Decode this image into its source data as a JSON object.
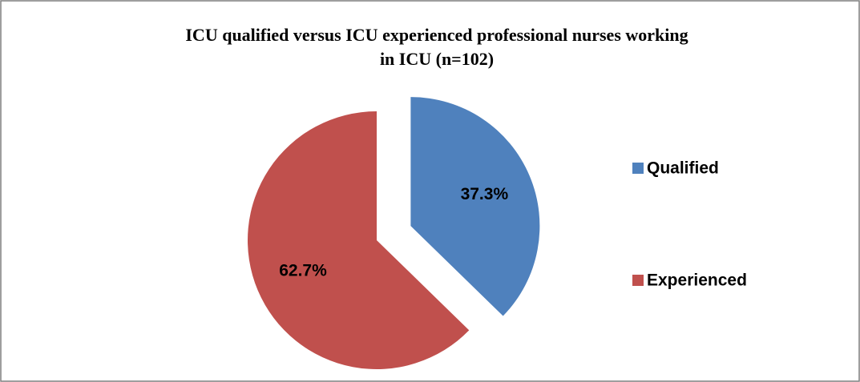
{
  "chart_data": {
    "type": "pie",
    "title": "ICU qualified versus ICU experienced professional nurses working in ICU (n=102)",
    "categories": [
      "Qualified",
      "Experienced"
    ],
    "values": [
      37.3,
      62.7
    ],
    "value_labels": [
      "37.3%",
      "62.7%"
    ],
    "colors": [
      "#4f81bd",
      "#c0504d"
    ],
    "legend": "right"
  }
}
